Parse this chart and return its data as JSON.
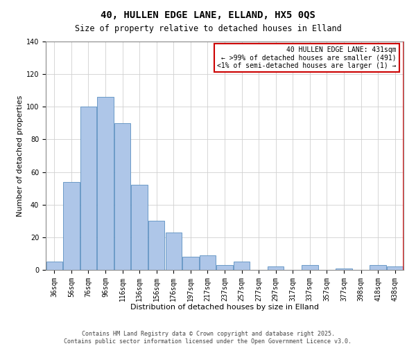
{
  "title": "40, HULLEN EDGE LANE, ELLAND, HX5 0QS",
  "subtitle": "Size of property relative to detached houses in Elland",
  "xlabel": "Distribution of detached houses by size in Elland",
  "ylabel": "Number of detached properties",
  "bar_labels": [
    "36sqm",
    "56sqm",
    "76sqm",
    "96sqm",
    "116sqm",
    "136sqm",
    "156sqm",
    "176sqm",
    "197sqm",
    "217sqm",
    "237sqm",
    "257sqm",
    "277sqm",
    "297sqm",
    "317sqm",
    "337sqm",
    "357sqm",
    "377sqm",
    "398sqm",
    "418sqm",
    "438sqm"
  ],
  "bar_values": [
    5,
    54,
    100,
    106,
    90,
    52,
    30,
    23,
    8,
    9,
    3,
    5,
    0,
    2,
    0,
    3,
    0,
    1,
    0,
    3,
    2
  ],
  "bar_color": "#aec6e8",
  "bar_edge_color": "#5a8fc0",
  "ylim": [
    0,
    140
  ],
  "yticks": [
    0,
    20,
    40,
    60,
    80,
    100,
    120,
    140
  ],
  "legend_line1": "40 HULLEN EDGE LANE: 431sqm",
  "legend_line2": "← >99% of detached houses are smaller (491)",
  "legend_line3": "<1% of semi-detached houses are larger (1) →",
  "legend_box_color": "#cc0000",
  "red_line_index": 20,
  "footnote1": "Contains HM Land Registry data © Crown copyright and database right 2025.",
  "footnote2": "Contains public sector information licensed under the Open Government Licence v3.0.",
  "grid_color": "#d0d0d0",
  "background_color": "#ffffff",
  "title_fontsize": 10,
  "subtitle_fontsize": 8.5,
  "axis_label_fontsize": 8,
  "tick_fontsize": 7,
  "legend_fontsize": 7,
  "footnote_fontsize": 6
}
